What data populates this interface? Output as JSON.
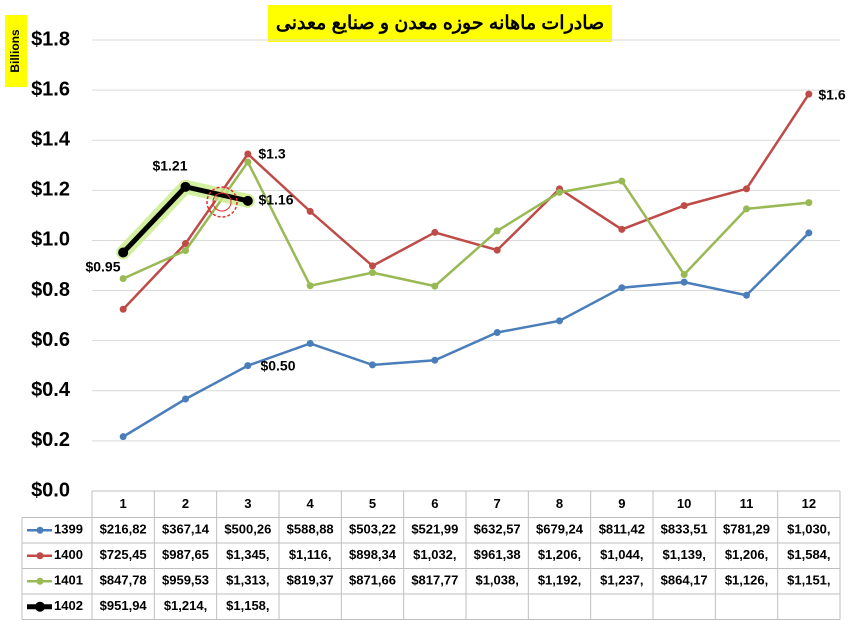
{
  "chart_data": {
    "type": "line",
    "title": "صادرات ماهانه حوزه معدن و صنایع معدنی",
    "y_label": "Billions",
    "categories": [
      "1",
      "2",
      "3",
      "4",
      "5",
      "6",
      "7",
      "8",
      "9",
      "10",
      "11",
      "12"
    ],
    "ylim": [
      0,
      1.8
    ],
    "yticks": [
      {
        "value": 0,
        "label": "$0.0"
      },
      {
        "value": 0.2,
        "label": "$0.2"
      },
      {
        "value": 0.4,
        "label": "$0.4"
      },
      {
        "value": 0.6,
        "label": "$0.6"
      },
      {
        "value": 0.8,
        "label": "$0.8"
      },
      {
        "value": 1.0,
        "label": "$1.0"
      },
      {
        "value": 1.2,
        "label": "$1.2"
      },
      {
        "value": 1.4,
        "label": "$1.4"
      },
      {
        "value": 1.6,
        "label": "$1.6"
      },
      {
        "value": 1.8,
        "label": "$1.8"
      }
    ],
    "grid": true,
    "series": [
      {
        "name": "1399",
        "color": "#4a7ebb",
        "values": [
          0.21682,
          0.36714,
          0.50026,
          0.58888,
          0.50322,
          0.52199,
          0.63257,
          0.67924,
          0.81142,
          0.83351,
          0.78129,
          1.03
        ],
        "value_labels": [
          "$216,82",
          "$367,14",
          "$500,26",
          "$588,88",
          "$503,22",
          "$521,99",
          "$632,57",
          "$679,24",
          "$811,42",
          "$833,51",
          "$781,29",
          "$1,030,"
        ]
      },
      {
        "name": "1400",
        "color": "#be4b48",
        "values": [
          0.72545,
          0.98765,
          1.345,
          1.116,
          0.89834,
          1.032,
          0.96138,
          1.206,
          1.044,
          1.139,
          1.206,
          1.584
        ],
        "value_labels": [
          "$725,45",
          "$987,65",
          "$1,345,",
          "$1,116,",
          "$898,34",
          "$1,032,",
          "$961,38",
          "$1,206,",
          "$1,044,",
          "$1,139,",
          "$1,206,",
          "$1,584,"
        ]
      },
      {
        "name": "1401",
        "color": "#98b954",
        "values": [
          0.84778,
          0.95953,
          1.313,
          0.81937,
          0.87166,
          0.81777,
          1.038,
          1.192,
          1.237,
          0.86417,
          1.126,
          1.151
        ],
        "value_labels": [
          "$847,78",
          "$959,53",
          "$1,313,",
          "$819,37",
          "$871,66",
          "$817,77",
          "$1,038,",
          "$1,192,",
          "$1,237,",
          "$864,17",
          "$1,126,",
          "$1,151,"
        ]
      },
      {
        "name": "1402",
        "color": "#000000",
        "values": [
          0.95194,
          1.214,
          1.158,
          null,
          null,
          null,
          null,
          null,
          null,
          null,
          null,
          null
        ],
        "value_labels": [
          "$951,94",
          "$1,214,",
          "$1,158,",
          null,
          null,
          null,
          null,
          null,
          null,
          null,
          null,
          null
        ]
      }
    ],
    "annotations": [
      "$1.21",
      "$1.16",
      "$0.95",
      "$1.3",
      "$0.50",
      "$1.6"
    ]
  }
}
